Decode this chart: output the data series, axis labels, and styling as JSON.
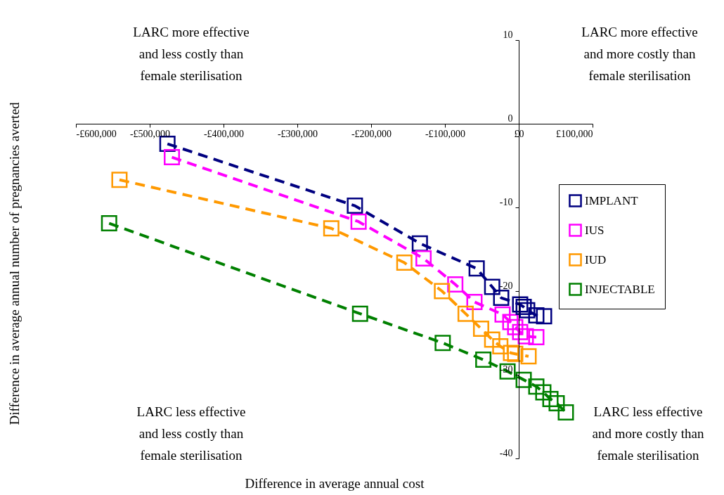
{
  "chart_data": {
    "type": "line",
    "xlabel": "Difference in average annual cost",
    "ylabel": "Difference in average annual number of pregnancies averted",
    "xlim": [
      -600000,
      100000
    ],
    "xticks": [
      {
        "value": -600000,
        "label": "-£600,000"
      },
      {
        "value": -500000,
        "label": "-£500,000"
      },
      {
        "value": -400000,
        "label": "-£400,000"
      },
      {
        "value": -300000,
        "label": "-£300,000"
      },
      {
        "value": -200000,
        "label": "-£200,000"
      },
      {
        "value": -100000,
        "label": "-£100,000"
      },
      {
        "value": 0,
        "label": "£0"
      },
      {
        "value": 100000,
        "label": "£100,000"
      }
    ],
    "ylim": [
      -40,
      10
    ],
    "yticks": [
      10,
      0,
      -10,
      -20,
      -30,
      -40
    ],
    "grid": false,
    "legend": "right",
    "marker": "square",
    "line_style": "dashed",
    "annotations": [
      "LARC more effective and less costly than female sterilisation",
      "LARC more effective and more costly than female sterilisation",
      "LARC less effective and less costly than female sterilisation",
      "LARC less effective and more costly than female sterilisation"
    ],
    "series": [
      {
        "name": "IMPLANT",
        "color": "#000080",
        "x": [
          -476000,
          -222000,
          -134000,
          -57000,
          -36000,
          -23800,
          1900,
          6700,
          11400,
          23800,
          34300
        ],
        "values": [
          -2.4,
          -9.8,
          -14.3,
          -17.3,
          -19.5,
          -20.8,
          -21.6,
          -21.9,
          -22.3,
          -22.9,
          -23.0
        ]
      },
      {
        "name": "IUS",
        "color": "#ff00ff",
        "x": [
          -470000,
          -217000,
          -129000,
          -86000,
          -60000,
          -21900,
          -11400,
          -4800,
          1900,
          9500,
          23800
        ],
        "values": [
          -4.0,
          -11.7,
          -16.1,
          -19.2,
          -21.3,
          -22.8,
          -23.7,
          -24.3,
          -24.9,
          -25.4,
          -25.5
        ]
      },
      {
        "name": "IUD",
        "color": "#ff9900",
        "x": [
          -541000,
          -254000,
          -155000,
          -104000,
          -72000,
          -51000,
          -36000,
          -25000,
          -10500,
          -4800,
          13300
        ],
        "values": [
          -6.7,
          -12.5,
          -16.6,
          -20.0,
          -22.7,
          -24.5,
          -25.8,
          -26.6,
          -27.4,
          -27.5,
          -27.8
        ]
      },
      {
        "name": "INJECTABLE",
        "color": "#008000",
        "x": [
          -555000,
          -215000,
          -103000,
          -48000,
          -15200,
          6700,
          23800,
          33300,
          42900,
          51400,
          63800
        ],
        "values": [
          -11.9,
          -22.7,
          -26.2,
          -28.2,
          -29.6,
          -30.6,
          -31.4,
          -32.1,
          -32.9,
          -33.4,
          -34.5
        ]
      }
    ]
  }
}
